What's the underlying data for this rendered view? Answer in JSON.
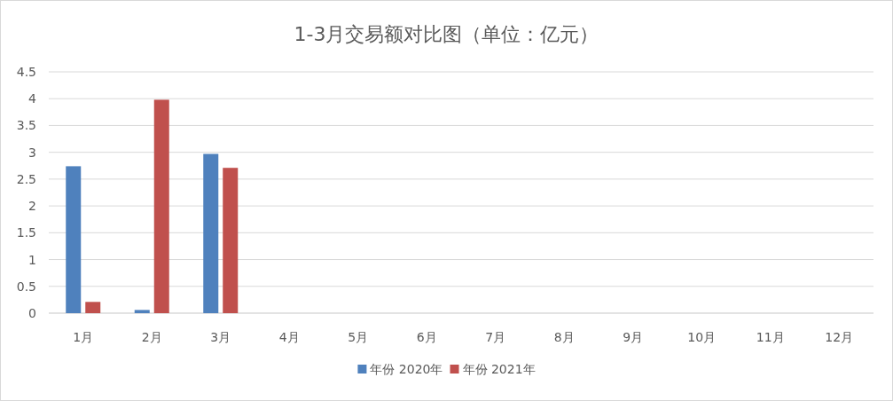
{
  "chart_data": {
    "type": "bar",
    "title": "1-3月交易额对比图（单位：亿元）",
    "categories": [
      "1月",
      "2月",
      "3月",
      "4月",
      "5月",
      "6月",
      "7月",
      "8月",
      "9月",
      "10月",
      "11月",
      "12月"
    ],
    "series": [
      {
        "name": "年份 2020年",
        "color": "#4f81bd",
        "values": [
          2.74,
          0.06,
          2.97,
          null,
          null,
          null,
          null,
          null,
          null,
          null,
          null,
          null
        ]
      },
      {
        "name": "年份 2021年",
        "color": "#c0504d",
        "values": [
          0.21,
          3.98,
          2.71,
          null,
          null,
          null,
          null,
          null,
          null,
          null,
          null,
          null
        ]
      }
    ],
    "ylim": [
      0,
      4.5
    ],
    "yticks": [
      0,
      0.5,
      1,
      1.5,
      2,
      2.5,
      3,
      3.5,
      4,
      4.5
    ],
    "grid": "y",
    "legend": "bottom"
  }
}
